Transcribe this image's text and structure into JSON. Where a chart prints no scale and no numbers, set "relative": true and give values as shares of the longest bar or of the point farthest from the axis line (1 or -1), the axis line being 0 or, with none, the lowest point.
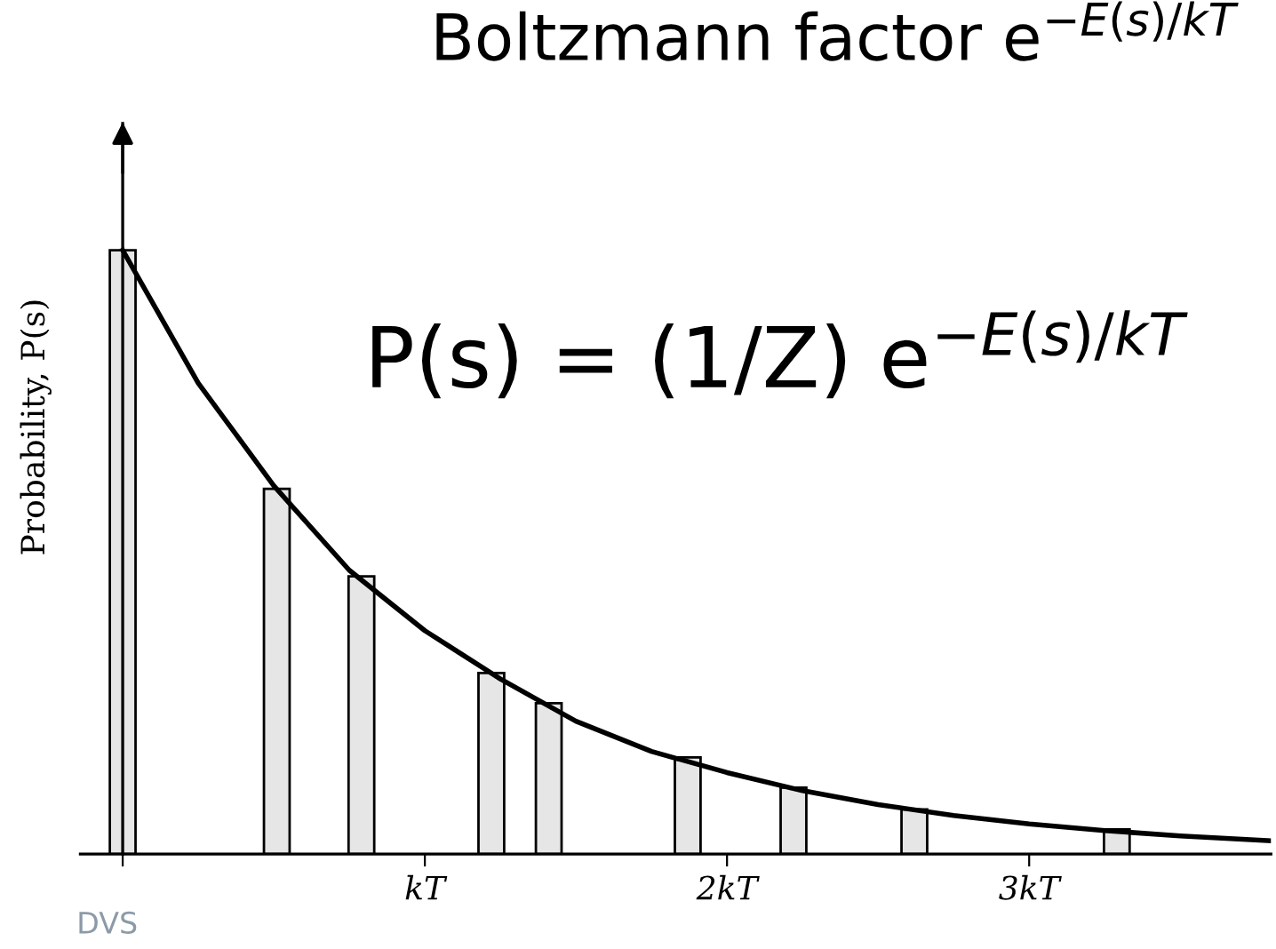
{
  "chart_data": {
    "type": "bar",
    "relative": true,
    "ylabel": "Probability, P(s)",
    "annotations": [
      "Boltzmann factor e$^{−E(s)/kT}$",
      "P(s) = (1/Z) e$^{−E(s)/kT}$",
      "DVS"
    ],
    "xlim": [
      -0.14,
      3.8
    ],
    "xticks": [
      {
        "value": 0,
        "label": null
      },
      {
        "value": 1,
        "label": "kT"
      },
      {
        "value": 2,
        "label": "2kT"
      },
      {
        "value": 3,
        "label": "3kT"
      }
    ],
    "series": [
      {
        "color": "#e6e6e6",
        "x": [
          0,
          0.51,
          0.79,
          1.22,
          1.41,
          1.87,
          2.22,
          2.62,
          3.29
        ],
        "values": [
          1.0,
          0.605,
          0.46,
          0.3,
          0.25,
          0.16,
          0.11,
          0.074,
          0.041
        ]
      },
      {
        "type": "line",
        "color": "#000000",
        "x": [
          0,
          0.25,
          0.5,
          0.75,
          1.0,
          1.25,
          1.5,
          1.75,
          2.0,
          2.25,
          2.5,
          2.75,
          3.0,
          3.25,
          3.5,
          3.8
        ],
        "values": [
          1.0,
          0.78,
          0.61,
          0.47,
          0.37,
          0.29,
          0.22,
          0.17,
          0.135,
          0.105,
          0.082,
          0.064,
          0.05,
          0.039,
          0.03,
          0.022
        ]
      }
    ],
    "legend": false
  }
}
